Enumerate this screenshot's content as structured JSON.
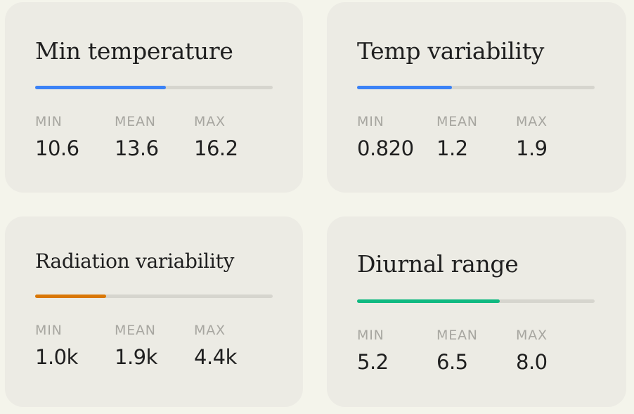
{
  "stat_labels": {
    "min": "MIN",
    "mean": "MEAN",
    "max": "MAX"
  },
  "cards": [
    {
      "title": "Min temperature",
      "accent": "#3b82f6",
      "fill_fraction": 0.55,
      "min": "10.6",
      "mean": "13.6",
      "max": "16.2"
    },
    {
      "title": "Temp variability",
      "accent": "#3b82f6",
      "fill_fraction": 0.4,
      "min": "0.820",
      "mean": "1.2",
      "max": "1.9"
    },
    {
      "title": "Radiation variability",
      "accent": "#d97706",
      "fill_fraction": 0.3,
      "min": "1.0k",
      "mean": "1.9k",
      "max": "4.4k"
    },
    {
      "title": "Diurnal range",
      "accent": "#10b981",
      "fill_fraction": 0.6,
      "min": "5.2",
      "mean": "6.5",
      "max": "8.0"
    }
  ]
}
